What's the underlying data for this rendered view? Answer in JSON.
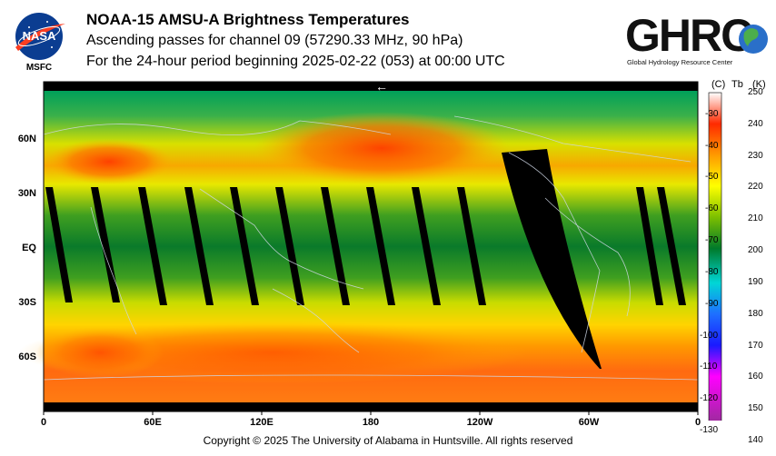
{
  "logos": {
    "nasa": {
      "text": "NASA",
      "sub": "MSFC"
    },
    "ghrc": {
      "text": "GHRC",
      "sub": "Global Hydrology Resource Center"
    }
  },
  "title": {
    "line1": "NOAA-15 AMSU-A Brightness Temperatures",
    "line2": "Ascending passes for channel 09 (57290.33 MHz, 90 hPa)",
    "line3": "For the 24-hour period beginning 2025-02-22 (053) at 00:00 UTC"
  },
  "map": {
    "lat_labels": [
      "60N",
      "30N",
      "EQ",
      "30S",
      "60S"
    ],
    "lon_labels": [
      "0",
      "60E",
      "120E",
      "180",
      "120W",
      "60W",
      "0"
    ],
    "arrow": "←"
  },
  "colorbar": {
    "header_c": "(C)",
    "header_tb": "Tb",
    "header_k": "(K)",
    "kelvin": [
      "250",
      "240",
      "230",
      "220",
      "210",
      "200",
      "190",
      "180",
      "170",
      "160",
      "150",
      "140"
    ],
    "celsius": [
      "-30",
      "-40",
      "-50",
      "-60",
      "-70",
      "-80",
      "-90",
      "-100",
      "-110",
      "-120",
      "-130"
    ],
    "stops": [
      "#ffffff",
      "#ff2a00",
      "#ff9a00",
      "#ffff00",
      "#7cbf00",
      "#007a2a",
      "#00d6d6",
      "#1e6fff",
      "#1a1aff",
      "#ff00ff",
      "#7a3a7a"
    ]
  },
  "footer": {
    "copyright": "Copyright © 2025 The University of Alabama in Huntsville.  All rights reserved"
  }
}
